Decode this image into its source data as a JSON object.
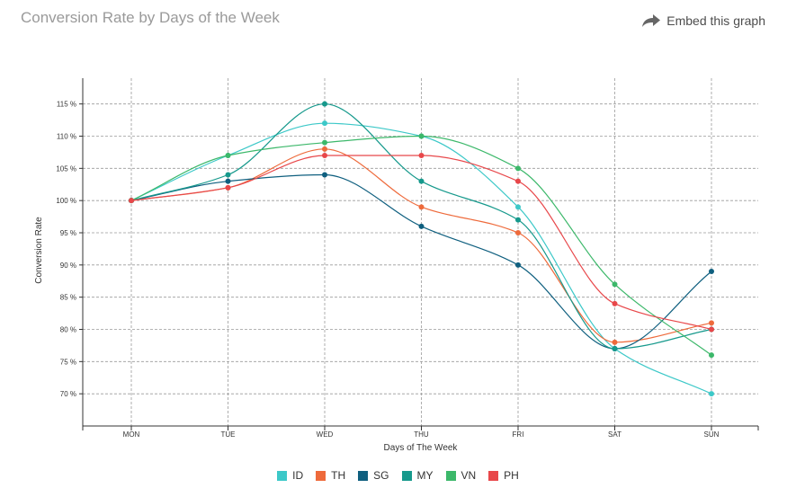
{
  "header": {
    "title": "Conversion Rate by Days of the Week",
    "embed_label": "Embed this graph",
    "embed_icon": "share-arrow-icon"
  },
  "chart_data": {
    "type": "line",
    "title": "Conversion Rate by Days of the Week",
    "xlabel": "Days of The Week",
    "ylabel": "Conversion Rate",
    "categories": [
      "MON",
      "TUE",
      "WED",
      "THU",
      "FRI",
      "SAT",
      "SUN"
    ],
    "ylim": [
      65,
      119
    ],
    "yticks": [
      70,
      75,
      80,
      85,
      90,
      95,
      100,
      105,
      110,
      115
    ],
    "ytick_labels": [
      "70 %",
      "75 %",
      "80 %",
      "85 %",
      "90 %",
      "95 %",
      "100 %",
      "105 %",
      "110 %",
      "115 %"
    ],
    "grid": true,
    "legend_position": "bottom-center",
    "series": [
      {
        "name": "ID",
        "color": "#3cc8c8",
        "values": [
          100,
          107,
          112,
          110,
          99,
          77,
          70
        ]
      },
      {
        "name": "TH",
        "color": "#ee6a3b",
        "values": [
          100,
          102,
          108,
          99,
          95,
          78,
          81
        ]
      },
      {
        "name": "SG",
        "color": "#0f5f7f",
        "values": [
          100,
          103,
          104,
          96,
          90,
          77,
          89
        ]
      },
      {
        "name": "MY",
        "color": "#16998c",
        "values": [
          100,
          104,
          115,
          103,
          97,
          77,
          80
        ]
      },
      {
        "name": "VN",
        "color": "#3cb86a",
        "values": [
          100,
          107,
          109,
          110,
          105,
          87,
          76
        ]
      },
      {
        "name": "PH",
        "color": "#e8474a",
        "values": [
          100,
          102,
          107,
          107,
          103,
          84,
          80
        ]
      }
    ]
  }
}
